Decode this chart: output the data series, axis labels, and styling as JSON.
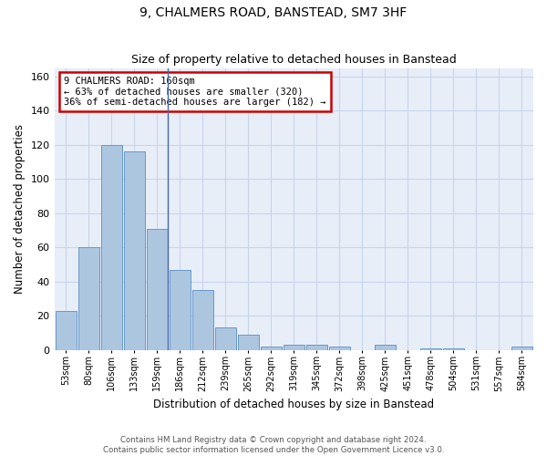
{
  "title1": "9, CHALMERS ROAD, BANSTEAD, SM7 3HF",
  "title2": "Size of property relative to detached houses in Banstead",
  "xlabel": "Distribution of detached houses by size in Banstead",
  "ylabel": "Number of detached properties",
  "categories": [
    "53sqm",
    "80sqm",
    "106sqm",
    "133sqm",
    "159sqm",
    "186sqm",
    "212sqm",
    "239sqm",
    "265sqm",
    "292sqm",
    "319sqm",
    "345sqm",
    "372sqm",
    "398sqm",
    "425sqm",
    "451sqm",
    "478sqm",
    "504sqm",
    "531sqm",
    "557sqm",
    "584sqm"
  ],
  "values": [
    23,
    60,
    120,
    116,
    71,
    47,
    35,
    13,
    9,
    2,
    3,
    3,
    2,
    0,
    3,
    0,
    1,
    1,
    0,
    0,
    2
  ],
  "bar_color": "#adc6e0",
  "bar_edge_color": "#6699cc",
  "marker_line_color": "#4466aa",
  "annotation_text_line1": "9 CHALMERS ROAD: 160sqm",
  "annotation_text_line2": "← 63% of detached houses are smaller (320)",
  "annotation_text_line3": "36% of semi-detached houses are larger (182) →",
  "annotation_box_color": "white",
  "annotation_border_color": "#cc0000",
  "ylim": [
    0,
    165
  ],
  "yticks": [
    0,
    20,
    40,
    60,
    80,
    100,
    120,
    140,
    160
  ],
  "grid_color": "#c8d4e8",
  "background_color": "#e8eef8",
  "footer1": "Contains HM Land Registry data © Crown copyright and database right 2024.",
  "footer2": "Contains public sector information licensed under the Open Government Licence v3.0."
}
